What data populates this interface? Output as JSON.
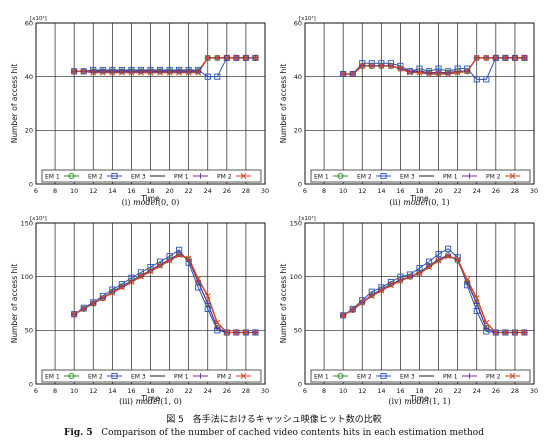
{
  "figure": {
    "caption_jp": "図 5　各手法におけるキャッシュ映像ヒット数の比較",
    "caption_en_label": "Fig. 5",
    "caption_en_text": "Comparison of the number of cached video contents hits in each estimation method"
  },
  "colors": {
    "EM1": "#2e8b2e",
    "EM2": "#2a4fb8",
    "EM3": "#1a1a1a",
    "PM1": "#6b2fa0",
    "PM2": "#d2452a"
  },
  "chart_data": [
    {
      "type": "line",
      "caption_prefix": "(i)",
      "caption_model": "model",
      "caption_args": "(0, 0)",
      "xlabel": "Time",
      "ylabel": "Number of access hit",
      "scale_label": "[x10⁴]",
      "xlim": [
        6,
        30
      ],
      "ylim": [
        0,
        60
      ],
      "xticks": [
        6,
        8,
        10,
        12,
        14,
        16,
        18,
        20,
        22,
        24,
        26,
        28,
        30
      ],
      "yticks": [
        0,
        20,
        40,
        60
      ],
      "x": [
        10,
        11,
        12,
        13,
        14,
        15,
        16,
        17,
        18,
        19,
        20,
        21,
        22,
        23,
        24,
        25,
        26,
        27,
        28,
        29
      ],
      "series": [
        {
          "name": "EM 1",
          "values": [
            42,
            42,
            42,
            42,
            42,
            42,
            42,
            42,
            42,
            42,
            42,
            42,
            42,
            42,
            47,
            47,
            47,
            47,
            47,
            47
          ]
        },
        {
          "name": "EM 2",
          "values": [
            42,
            42,
            42.5,
            42.5,
            42.5,
            42.5,
            42.5,
            42.5,
            42.5,
            42.5,
            42.5,
            42.5,
            42.5,
            42.5,
            40,
            40,
            47,
            47,
            47,
            47
          ]
        },
        {
          "name": "EM 3",
          "values": [
            42,
            42,
            42,
            42,
            42,
            42,
            42,
            42,
            42,
            42,
            42,
            42,
            42,
            42,
            47,
            47,
            47,
            47,
            47,
            47
          ]
        },
        {
          "name": "PM 1",
          "values": [
            42,
            42,
            42,
            42,
            42,
            42,
            42,
            42,
            42,
            42,
            42,
            42,
            42,
            42,
            47,
            47,
            47,
            47,
            47,
            47
          ]
        },
        {
          "name": "PM 2",
          "values": [
            42,
            42,
            41.5,
            41.5,
            41.5,
            41.5,
            41.5,
            41.5,
            41.5,
            41.5,
            41.5,
            41.5,
            41.5,
            41.5,
            47,
            47,
            47,
            47,
            47,
            47
          ]
        }
      ]
    },
    {
      "type": "line",
      "caption_prefix": "(ii)",
      "caption_model": "model",
      "caption_args": "(0, 1)",
      "xlabel": "Time",
      "ylabel": "Number of access hit",
      "scale_label": "[x10⁴]",
      "xlim": [
        6,
        30
      ],
      "ylim": [
        0,
        60
      ],
      "xticks": [
        6,
        8,
        10,
        12,
        14,
        16,
        18,
        20,
        22,
        24,
        26,
        28,
        30
      ],
      "yticks": [
        0,
        20,
        40,
        60
      ],
      "x": [
        10,
        11,
        12,
        13,
        14,
        15,
        16,
        17,
        18,
        19,
        20,
        21,
        22,
        23,
        24,
        25,
        26,
        27,
        28,
        29
      ],
      "series": [
        {
          "name": "EM 1",
          "values": [
            41,
            41,
            44,
            44,
            44,
            44,
            43,
            42,
            42,
            41.5,
            41.5,
            41.5,
            42,
            42,
            47,
            47,
            47,
            47,
            47,
            47
          ]
        },
        {
          "name": "EM 2",
          "values": [
            41,
            41,
            45,
            45,
            45,
            45,
            44,
            42,
            43,
            42,
            43,
            42,
            43,
            43,
            39,
            39,
            47,
            47,
            47,
            47
          ]
        },
        {
          "name": "EM 3",
          "values": [
            41,
            41,
            44,
            44,
            44,
            44,
            43,
            42,
            42,
            41.5,
            41.5,
            41.5,
            42,
            42,
            47,
            47,
            47,
            47,
            47,
            47
          ]
        },
        {
          "name": "PM 1",
          "values": [
            41,
            41,
            44,
            44,
            44,
            44,
            43,
            42,
            42,
            41.5,
            41.5,
            41.5,
            42,
            42,
            47,
            47,
            47,
            47,
            47,
            47
          ]
        },
        {
          "name": "PM 2",
          "values": [
            41,
            41,
            44,
            44,
            44,
            44,
            43,
            41.5,
            41.5,
            41,
            41,
            41,
            41.5,
            42,
            47,
            47,
            47,
            47,
            47,
            47
          ]
        }
      ]
    },
    {
      "type": "line",
      "caption_prefix": "(iii)",
      "caption_model": "model",
      "caption_args": "(1, 0)",
      "xlabel": "Time",
      "ylabel": "Number of access hit",
      "scale_label": "[x10⁴]",
      "xlim": [
        6,
        30
      ],
      "ylim": [
        0,
        150
      ],
      "xticks": [
        6,
        8,
        10,
        12,
        14,
        16,
        18,
        20,
        22,
        24,
        26,
        28,
        30
      ],
      "yticks": [
        0,
        50,
        100,
        150
      ],
      "x": [
        10,
        11,
        12,
        13,
        14,
        15,
        16,
        17,
        18,
        19,
        20,
        21,
        22,
        23,
        24,
        25,
        26,
        27,
        28,
        29
      ],
      "series": [
        {
          "name": "EM 1",
          "values": [
            65,
            70,
            75,
            80,
            86,
            91,
            96,
            101,
            106,
            111,
            116,
            121,
            116,
            95,
            75,
            52,
            48,
            48,
            48,
            48
          ]
        },
        {
          "name": "EM 2",
          "values": [
            65,
            71,
            76,
            82,
            88,
            93,
            99,
            104,
            109,
            114,
            119,
            125,
            113,
            90,
            70,
            50,
            48,
            48,
            48,
            48
          ]
        },
        {
          "name": "EM 3",
          "values": [
            65,
            70,
            75,
            80,
            86,
            91,
            96,
            101,
            106,
            111,
            116,
            121,
            116,
            95,
            75,
            52,
            48,
            48,
            48,
            48
          ]
        },
        {
          "name": "PM 1",
          "values": [
            65,
            70,
            75,
            80,
            86,
            91,
            96,
            101,
            106,
            111,
            116,
            121,
            116,
            95,
            75,
            52,
            48,
            48,
            48,
            48
          ]
        },
        {
          "name": "PM 2",
          "values": [
            65,
            70,
            75,
            80,
            85,
            90,
            95,
            100,
            105,
            110,
            115,
            120,
            117,
            98,
            82,
            57,
            48,
            48,
            48,
            48
          ]
        }
      ]
    },
    {
      "type": "line",
      "caption_prefix": "(iv)",
      "caption_model": "model",
      "caption_args": "(1, 1)",
      "xlabel": "Time",
      "ylabel": "Number of access hit",
      "scale_label": "[x10⁴]",
      "xlim": [
        6,
        30
      ],
      "ylim": [
        0,
        150
      ],
      "xticks": [
        6,
        8,
        10,
        12,
        14,
        16,
        18,
        20,
        22,
        24,
        26,
        28,
        30
      ],
      "yticks": [
        0,
        50,
        100,
        150
      ],
      "x": [
        10,
        11,
        12,
        13,
        14,
        15,
        16,
        17,
        18,
        19,
        20,
        21,
        22,
        23,
        24,
        25,
        26,
        27,
        28,
        29
      ],
      "series": [
        {
          "name": "EM 1",
          "values": [
            64,
            69,
            76,
            83,
            88,
            93,
            97,
            100,
            104,
            110,
            116,
            120,
            115,
            95,
            75,
            52,
            48,
            48,
            48,
            48
          ]
        },
        {
          "name": "EM 2",
          "values": [
            64,
            70,
            78,
            86,
            90,
            95,
            100,
            102,
            108,
            114,
            121,
            126,
            118,
            92,
            68,
            49,
            48,
            48,
            48,
            48
          ]
        },
        {
          "name": "EM 3",
          "values": [
            64,
            69,
            76,
            83,
            88,
            93,
            97,
            100,
            104,
            110,
            116,
            120,
            115,
            95,
            75,
            52,
            48,
            48,
            48,
            48
          ]
        },
        {
          "name": "PM 1",
          "values": [
            64,
            69,
            76,
            83,
            88,
            93,
            97,
            100,
            104,
            110,
            116,
            120,
            115,
            95,
            75,
            52,
            48,
            48,
            48,
            48
          ]
        },
        {
          "name": "PM 2",
          "values": [
            64,
            69,
            76,
            82,
            87,
            92,
            96,
            100,
            103,
            109,
            115,
            119,
            116,
            97,
            80,
            57,
            48,
            48,
            48,
            48
          ]
        }
      ]
    }
  ]
}
